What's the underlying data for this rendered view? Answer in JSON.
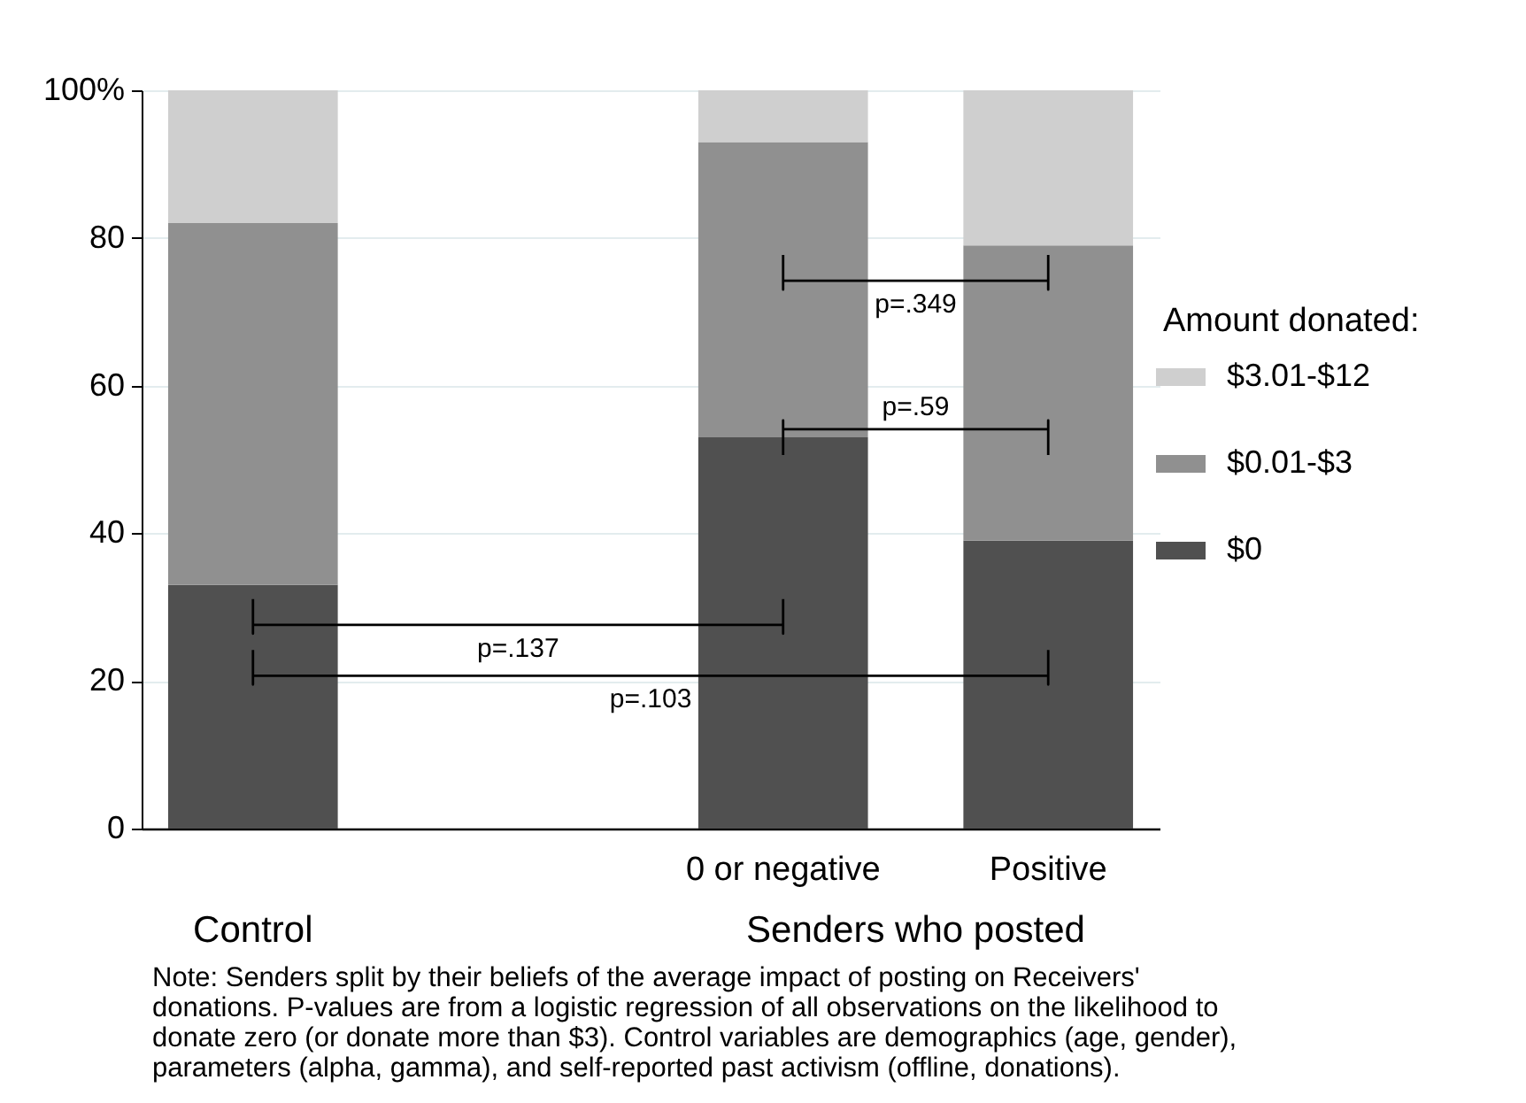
{
  "chart_data": {
    "type": "bar",
    "stacked": true,
    "categories": [
      "Control",
      null,
      "0 or negative",
      "Positive"
    ],
    "series": [
      {
        "name": "$0",
        "color": "#505050",
        "values": [
          33,
          null,
          53,
          39
        ]
      },
      {
        "name": "$0.01-$3",
        "color": "#909090",
        "values": [
          49,
          null,
          40,
          40
        ]
      },
      {
        "name": "$3.01-$12",
        "color": "#cfcfcf",
        "values": [
          18,
          null,
          7,
          21
        ]
      }
    ],
    "legend_title": "Amount donated:",
    "legend": "right",
    "ylim": [
      0,
      100
    ],
    "yticks": [
      0,
      20,
      40,
      60,
      80,
      {
        "value": 100,
        "label": "100%"
      }
    ],
    "grid": "y",
    "annotations": [
      "p=.349",
      "p=.59",
      "p=.137",
      "p=.103",
      "Senders who posted",
      "Note: Senders split by their beliefs of the average impact of posting on Receivers' donations. P-values are from a logistic regression of all observations on the likelihood to donate zero (or donate more than $3). Control variables are demographics (age, gender), parameters (alpha, gamma), and self-reported past activism (offline, donations)."
    ]
  }
}
